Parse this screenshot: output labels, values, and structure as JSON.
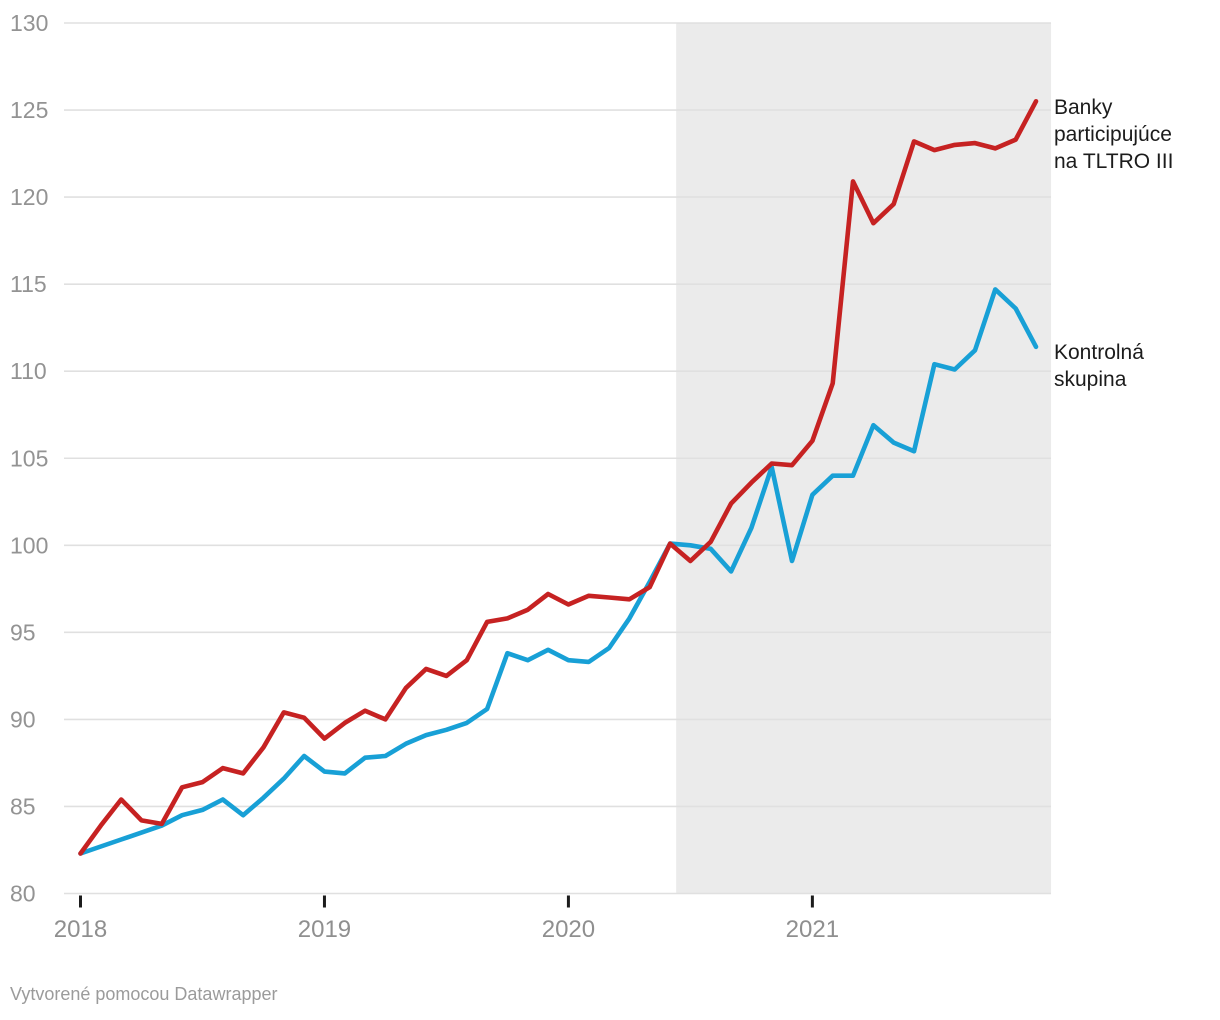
{
  "footer": {
    "text": "Vytvorené pomocou Datawrapper"
  },
  "chart_data": {
    "type": "line",
    "x": [
      "2018-01",
      "2018-02",
      "2018-03",
      "2018-04",
      "2018-05",
      "2018-06",
      "2018-07",
      "2018-08",
      "2018-09",
      "2018-10",
      "2018-11",
      "2018-12",
      "2019-01",
      "2019-02",
      "2019-03",
      "2019-04",
      "2019-05",
      "2019-06",
      "2019-07",
      "2019-08",
      "2019-09",
      "2019-10",
      "2019-11",
      "2019-12",
      "2020-01",
      "2020-02",
      "2020-03",
      "2020-04",
      "2020-05",
      "2020-06",
      "2020-07",
      "2020-08",
      "2020-09",
      "2020-10",
      "2020-11",
      "2020-12",
      "2021-01",
      "2021-02",
      "2021-03",
      "2021-04",
      "2021-05",
      "2021-06",
      "2021-07",
      "2021-08",
      "2021-09",
      "2021-10",
      "2021-11",
      "2021-12"
    ],
    "x_tick_labels": [
      "2018",
      "2019",
      "2020",
      "2021"
    ],
    "x_tick_indices": [
      0,
      12,
      24,
      36
    ],
    "y_ticks": [
      80,
      85,
      90,
      95,
      100,
      105,
      110,
      115,
      120,
      125,
      130
    ],
    "ylim": [
      80,
      130
    ],
    "grid": "horizontal",
    "legend_position": "direct-right",
    "shaded_region": {
      "from_index": 29.3,
      "to_index": 47.74,
      "color": "#ebebeb"
    },
    "series": [
      {
        "name": "Banky participujúce na TLTRO III",
        "label_lines": "Banky\nparticipujúce\nna TLTRO III",
        "color": "#c62222",
        "values": [
          82.3,
          83.9,
          85.4,
          84.2,
          84.0,
          86.1,
          86.4,
          87.2,
          86.9,
          88.4,
          90.4,
          90.1,
          88.9,
          89.8,
          90.5,
          90.0,
          91.8,
          92.9,
          92.5,
          93.4,
          95.6,
          95.8,
          96.3,
          97.2,
          96.6,
          97.1,
          97.0,
          96.9,
          97.6,
          100.1,
          99.1,
          100.2,
          102.4,
          103.6,
          104.7,
          104.6,
          106.0,
          109.3,
          120.9,
          118.5,
          119.6,
          123.2,
          122.7,
          123.0,
          123.1,
          122.8,
          123.3,
          125.5
        ]
      },
      {
        "name": "Kontrolná skupina",
        "label_lines": "Kontrolná\nskupina",
        "color": "#18a0d6",
        "values": [
          82.3,
          82.7,
          83.1,
          83.5,
          83.9,
          84.5,
          84.8,
          85.4,
          84.5,
          85.5,
          86.6,
          87.9,
          87.0,
          86.9,
          87.8,
          87.9,
          88.6,
          89.1,
          89.4,
          89.8,
          90.6,
          93.8,
          93.4,
          94.0,
          93.4,
          93.3,
          94.1,
          95.8,
          97.9,
          100.1,
          100.0,
          99.8,
          98.5,
          101.0,
          104.5,
          99.1,
          102.9,
          104.0,
          104.0,
          106.9,
          105.9,
          105.4,
          110.4,
          110.1,
          111.2,
          114.7,
          113.6,
          111.4
        ]
      }
    ]
  }
}
